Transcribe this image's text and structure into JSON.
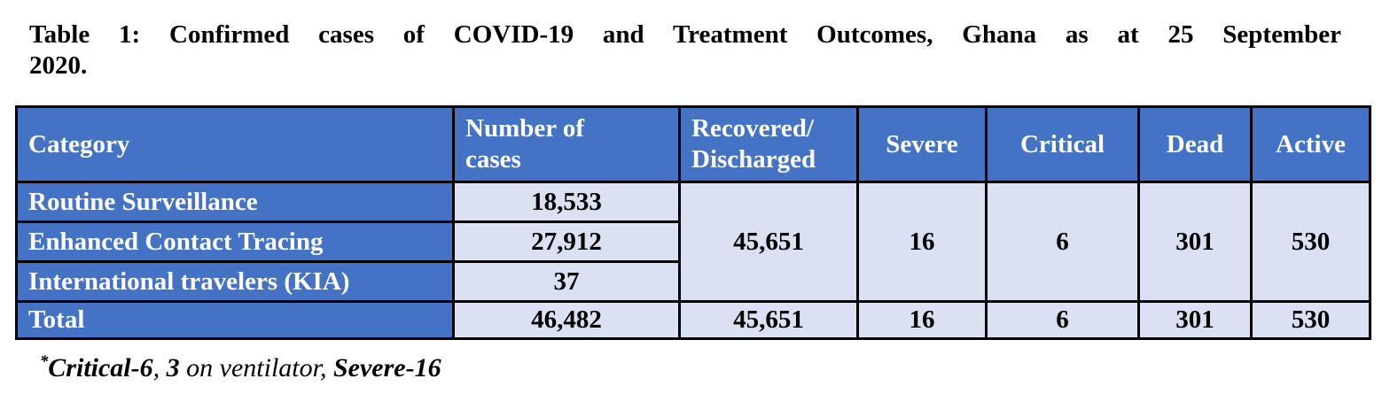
{
  "caption": {
    "line1": "Table 1: Confirmed cases of COVID-19 and Treatment Outcomes, Ghana as at 25 September",
    "line2": "2020."
  },
  "table": {
    "headers": [
      "Category",
      "Number of\ncases",
      "Recovered/\nDischarged",
      "Severe",
      "Critical",
      "Dead",
      "Active"
    ],
    "rows": [
      {
        "category": "Routine Surveillance",
        "number_of_cases": "18,533"
      },
      {
        "category": "Enhanced Contact Tracing",
        "number_of_cases": "27,912"
      },
      {
        "category": "International travelers (KIA)",
        "number_of_cases": "37"
      }
    ],
    "merged": {
      "recovered_discharged": "45,651",
      "severe": "16",
      "critical": "6",
      "dead": "301",
      "active": "530"
    },
    "total": {
      "category": "Total",
      "number_of_cases": "46,482",
      "recovered_discharged": "45,651",
      "severe": "16",
      "critical": "6",
      "dead": "301",
      "active": "530"
    },
    "colors": {
      "header_bg": "#4472C4",
      "header_text": "#FFFFFF",
      "cell_bg": "#D9E1F2",
      "cell_text": "#000000",
      "border": "#000000"
    }
  },
  "footnote": {
    "marker": "*",
    "segments": [
      {
        "text": "Critical-6",
        "bold": true
      },
      {
        "text": ", ",
        "bold": false
      },
      {
        "text": "3",
        "bold": true
      },
      {
        "text": " on ventilator, ",
        "bold": false
      },
      {
        "text": "Severe-16",
        "bold": true
      }
    ]
  }
}
